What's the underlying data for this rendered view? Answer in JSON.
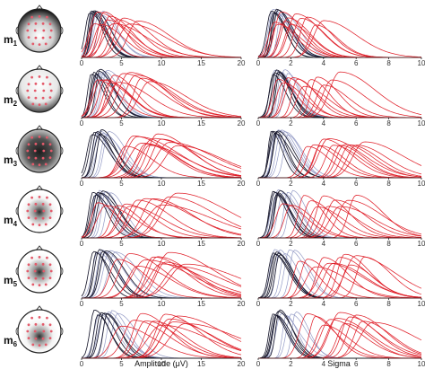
{
  "chart_data": [
    {
      "type": "line",
      "panel_column": "amplitude",
      "rows": [
        "m1",
        "m2",
        "m3",
        "m4",
        "m5",
        "m6"
      ],
      "xlabel": "Amplitude (μV)",
      "xlim": [
        0,
        20
      ],
      "xticks": [
        "0",
        "5",
        "10",
        "15",
        "20"
      ],
      "ylim": [
        0,
        1
      ],
      "series_colors": [
        "#1a1a2e",
        "#8890c0",
        "#e0202a"
      ],
      "peak_positions": {
        "m1": {
          "dark": [
            1.0,
            1.2,
            1.4,
            1.6,
            1.8
          ],
          "blue": [
            1.3,
            1.6,
            1.9,
            2.2,
            2.6
          ],
          "red": [
            1.6,
            2.0,
            2.4,
            2.8,
            3.2,
            3.5,
            4.0,
            4.5,
            5.2,
            6.0,
            7.0
          ]
        },
        "m2": {
          "dark": [
            1.2,
            1.5,
            1.7,
            2.0,
            2.3
          ],
          "blue": [
            1.8,
            2.1,
            2.4,
            2.8,
            3.2
          ],
          "red": [
            2.0,
            2.5,
            3.0,
            3.5,
            4.0,
            4.6,
            5.2,
            6.0,
            6.8,
            7.5,
            8.5
          ]
        },
        "m3": {
          "dark": [
            1.3,
            1.6,
            1.9,
            2.2,
            2.5
          ],
          "blue": [
            1.8,
            2.2,
            2.6,
            3.0,
            3.4
          ],
          "red": [
            5.5,
            6.5,
            7.0,
            7.5,
            8.0,
            8.5,
            9.0,
            9.5,
            10.0,
            11.0,
            12.0
          ]
        },
        "m4": {
          "dark": [
            1.4,
            1.7,
            2.0,
            2.3,
            2.6
          ],
          "blue": [
            1.8,
            2.2,
            2.6,
            3.0,
            3.6
          ],
          "red": [
            2.0,
            3.0,
            4.5,
            5.5,
            6.0,
            7.0,
            8.0,
            9.0,
            10.0,
            11.0,
            12.0
          ]
        },
        "m5": {
          "dark": [
            1.5,
            1.8,
            2.2,
            2.6,
            3.0
          ],
          "blue": [
            2.0,
            2.5,
            3.0,
            3.5,
            4.2
          ],
          "red": [
            4.5,
            6.0,
            7.0,
            8.0,
            9.0,
            9.5,
            10.0,
            10.5,
            11.0,
            12.0,
            13.0
          ]
        },
        "m6": {
          "dark": [
            1.6,
            2.0,
            2.4,
            2.8,
            3.2
          ],
          "blue": [
            2.2,
            2.8,
            3.3,
            3.8,
            4.5
          ],
          "red": [
            5.0,
            6.5,
            7.5,
            8.0,
            9.0,
            10.0,
            10.5,
            11.0,
            11.5,
            12.0,
            13.0
          ]
        }
      }
    },
    {
      "type": "line",
      "panel_column": "sigma",
      "rows": [
        "m1",
        "m2",
        "m3",
        "m4",
        "m5",
        "m6"
      ],
      "xlabel": "Sigma",
      "xlim": [
        0,
        10
      ],
      "xticks": [
        "0",
        "2",
        "4",
        "6",
        "8",
        "10"
      ],
      "ylim": [
        0,
        1
      ],
      "series_colors": [
        "#1a1a2e",
        "#8890c0",
        "#e0202a"
      ],
      "peak_positions": {
        "m1": {
          "dark": [
            0.8,
            0.9,
            1.0,
            1.1,
            1.2
          ],
          "blue": [
            0.9,
            1.0,
            1.2,
            1.4,
            1.6
          ],
          "red": [
            1.0,
            1.2,
            1.4,
            1.6,
            1.8,
            2.0,
            2.3,
            2.6,
            3.0,
            3.5,
            4.0
          ]
        },
        "m2": {
          "dark": [
            0.9,
            1.0,
            1.1,
            1.2,
            1.3
          ],
          "blue": [
            1.0,
            1.2,
            1.4,
            1.6,
            1.8
          ],
          "red": [
            1.2,
            1.5,
            1.8,
            2.1,
            2.4,
            2.8,
            3.2,
            3.6,
            4.0,
            4.5,
            5.0
          ]
        },
        "m3": {
          "dark": [
            0.8,
            0.9,
            1.0,
            1.1,
            1.2
          ],
          "blue": [
            1.0,
            1.2,
            1.4,
            1.6,
            1.8
          ],
          "red": [
            3.0,
            3.4,
            3.8,
            4.0,
            4.3,
            4.6,
            5.0,
            5.3,
            5.6,
            6.0,
            6.5
          ]
        },
        "m4": {
          "dark": [
            0.9,
            1.0,
            1.1,
            1.2,
            1.3
          ],
          "blue": [
            1.0,
            1.2,
            1.5,
            1.8,
            2.1
          ],
          "red": [
            1.5,
            2.0,
            2.8,
            3.2,
            3.6,
            4.0,
            4.3,
            4.7,
            5.0,
            5.5,
            6.0
          ]
        },
        "m5": {
          "dark": [
            0.9,
            1.0,
            1.1,
            1.2,
            1.3
          ],
          "blue": [
            1.0,
            1.3,
            1.6,
            1.9,
            2.2
          ],
          "red": [
            2.5,
            3.0,
            3.5,
            4.0,
            4.3,
            4.6,
            5.0,
            5.3,
            5.6,
            6.0,
            6.5
          ]
        },
        "m6": {
          "dark": [
            0.9,
            1.0,
            1.1,
            1.2,
            1.3
          ],
          "blue": [
            1.1,
            1.4,
            1.7,
            2.0,
            2.3
          ],
          "red": [
            3.0,
            3.5,
            4.0,
            4.4,
            4.8,
            5.0,
            5.3,
            5.6,
            6.0,
            6.4,
            7.0
          ]
        }
      }
    }
  ],
  "row_labels": [
    {
      "letter": "m",
      "sub": "1"
    },
    {
      "letter": "m",
      "sub": "2"
    },
    {
      "letter": "m",
      "sub": "3"
    },
    {
      "letter": "m",
      "sub": "4"
    },
    {
      "letter": "m",
      "sub": "5"
    },
    {
      "letter": "m",
      "sub": "6"
    }
  ],
  "head_maps": [
    {
      "row": "m1",
      "pattern": "frontal-dark-center-bright"
    },
    {
      "row": "m2",
      "pattern": "posterior-dark"
    },
    {
      "row": "m3",
      "pattern": "dark-center-square"
    },
    {
      "row": "m4",
      "pattern": "central-dark-spot"
    },
    {
      "row": "m5",
      "pattern": "central-dark-spot"
    },
    {
      "row": "m6",
      "pattern": "lower-central-dark-spot"
    }
  ]
}
